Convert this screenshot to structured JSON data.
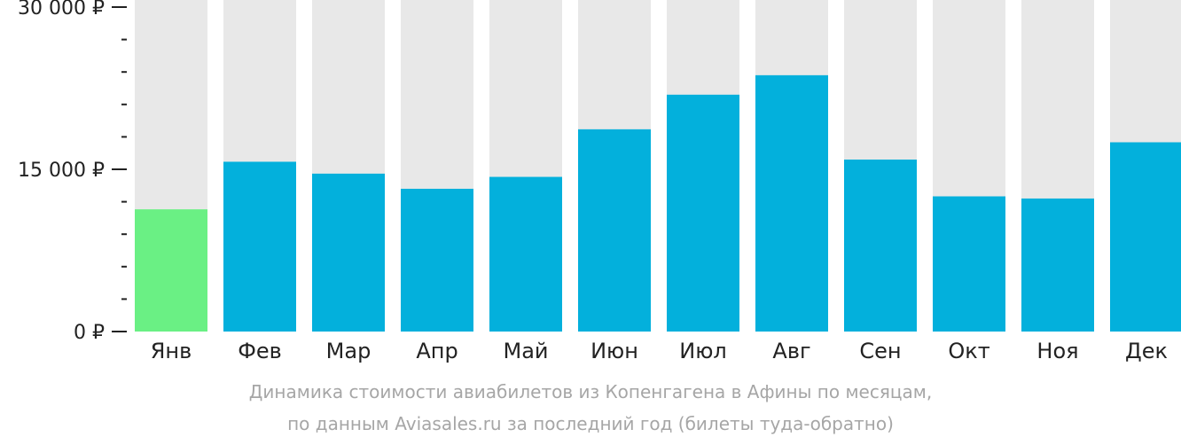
{
  "chart_data": {
    "type": "bar",
    "categories": [
      "Янв",
      "Фев",
      "Мар",
      "Апр",
      "Май",
      "Июн",
      "Июл",
      "Авг",
      "Сен",
      "Окт",
      "Ноя",
      "Дек"
    ],
    "values": [
      11300,
      15700,
      14600,
      13200,
      14300,
      18700,
      21900,
      23700,
      15900,
      12500,
      12300,
      17500
    ],
    "ylim": [
      0,
      30000
    ],
    "yticks": [
      {
        "value": 0,
        "label": "0 ₽"
      },
      {
        "value": 15000,
        "label": "15 000 ₽"
      },
      {
        "value": 30000,
        "label": "30 000 ₽"
      }
    ],
    "minor_tick_step": 3000,
    "highlight_index": 0,
    "caption": [
      "Динамика стоимости авиабилетов из Копенгагена в Афины по месяцам,",
      "по данным Aviasales.ru за последний год (билеты туда-обратно)"
    ],
    "colors": {
      "bar": "#03b0dc",
      "highlight": "#6af084",
      "track": "#e8e8e8",
      "axis": "#222222",
      "caption": "#a6a6a6"
    }
  }
}
